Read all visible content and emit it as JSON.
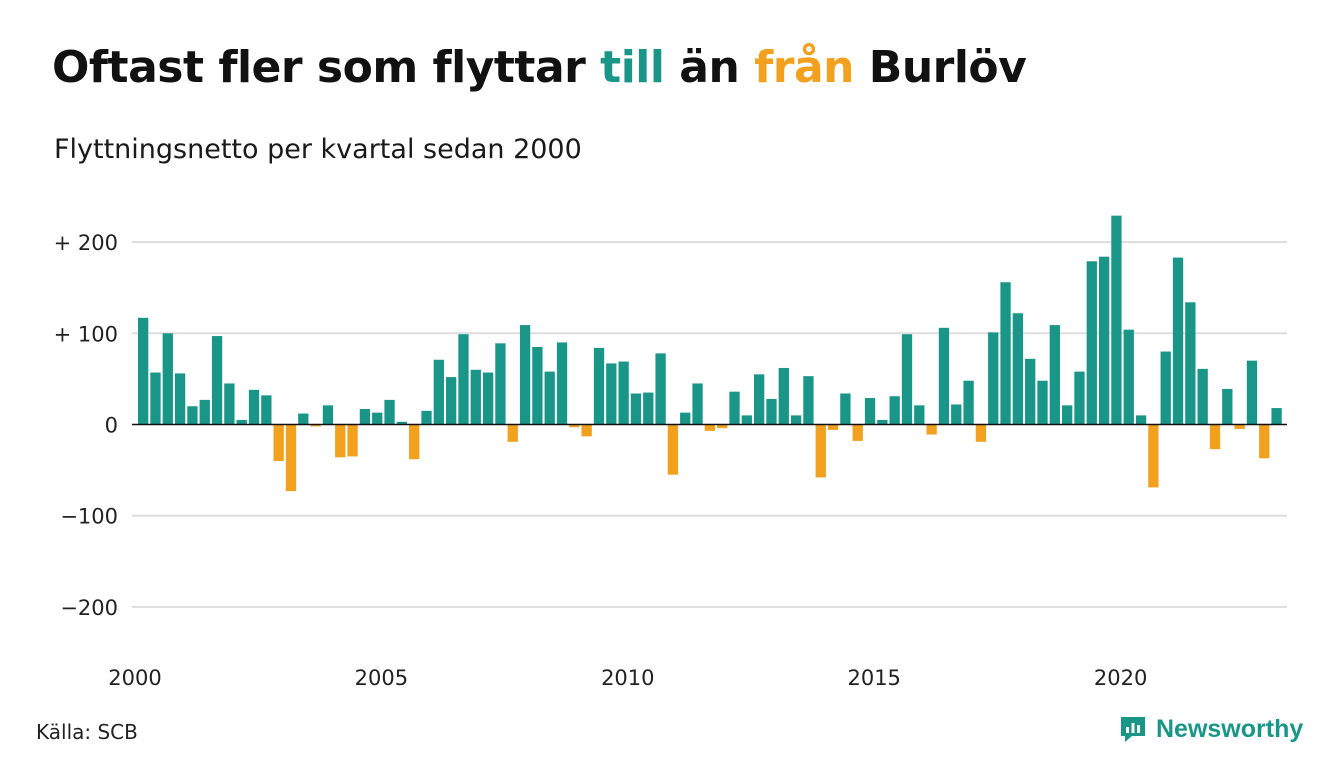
{
  "title": {
    "part1": "Oftast fler som flyttar ",
    "till": "till",
    "part2": " än ",
    "fran": "från",
    "part3": " Burlöv"
  },
  "subtitle": "Flyttningsnetto per kvartal sedan 2000",
  "source": "Källa: SCB",
  "brand": "Newsworthy",
  "colors": {
    "positive": "#1a9688",
    "negative": "#f2a11f",
    "grid": "#dddddd",
    "zero": "#111111"
  },
  "chart_data": {
    "type": "bar",
    "title": "Oftast fler som flyttar till än från Burlöv",
    "subtitle": "Flyttningsnetto per kvartal sedan 2000",
    "ylim": [
      -240,
      235
    ],
    "yticks": [
      {
        "value": 200,
        "label": "+ 200"
      },
      {
        "value": 100,
        "label": "+ 100"
      },
      {
        "value": 0,
        "label": "0"
      },
      {
        "value": -100,
        "label": "−100"
      },
      {
        "value": -200,
        "label": "−200"
      }
    ],
    "xticks": [
      "2000",
      "2005",
      "2010",
      "2015",
      "2020"
    ],
    "start_year": 2000,
    "grid": true,
    "values": [
      117,
      57,
      100,
      56,
      20,
      27,
      97,
      45,
      5,
      38,
      32,
      -40,
      -73,
      12,
      -2,
      21,
      -36,
      -35,
      17,
      13,
      27,
      3,
      -38,
      15,
      71,
      52,
      99,
      60,
      57,
      89,
      -19,
      109,
      85,
      58,
      90,
      -3,
      -13,
      84,
      67,
      69,
      34,
      35,
      78,
      -55,
      13,
      45,
      -7,
      -4,
      36,
      10,
      55,
      28,
      62,
      10,
      53,
      -58,
      -6,
      34,
      -18,
      29,
      5,
      31,
      99,
      21,
      -11,
      106,
      22,
      48,
      -19,
      101,
      156,
      122,
      72,
      48,
      109,
      21,
      58,
      179,
      184,
      229,
      104,
      10,
      -69,
      80,
      183,
      134,
      61,
      -27,
      39,
      -5,
      70,
      -37,
      18
    ]
  }
}
